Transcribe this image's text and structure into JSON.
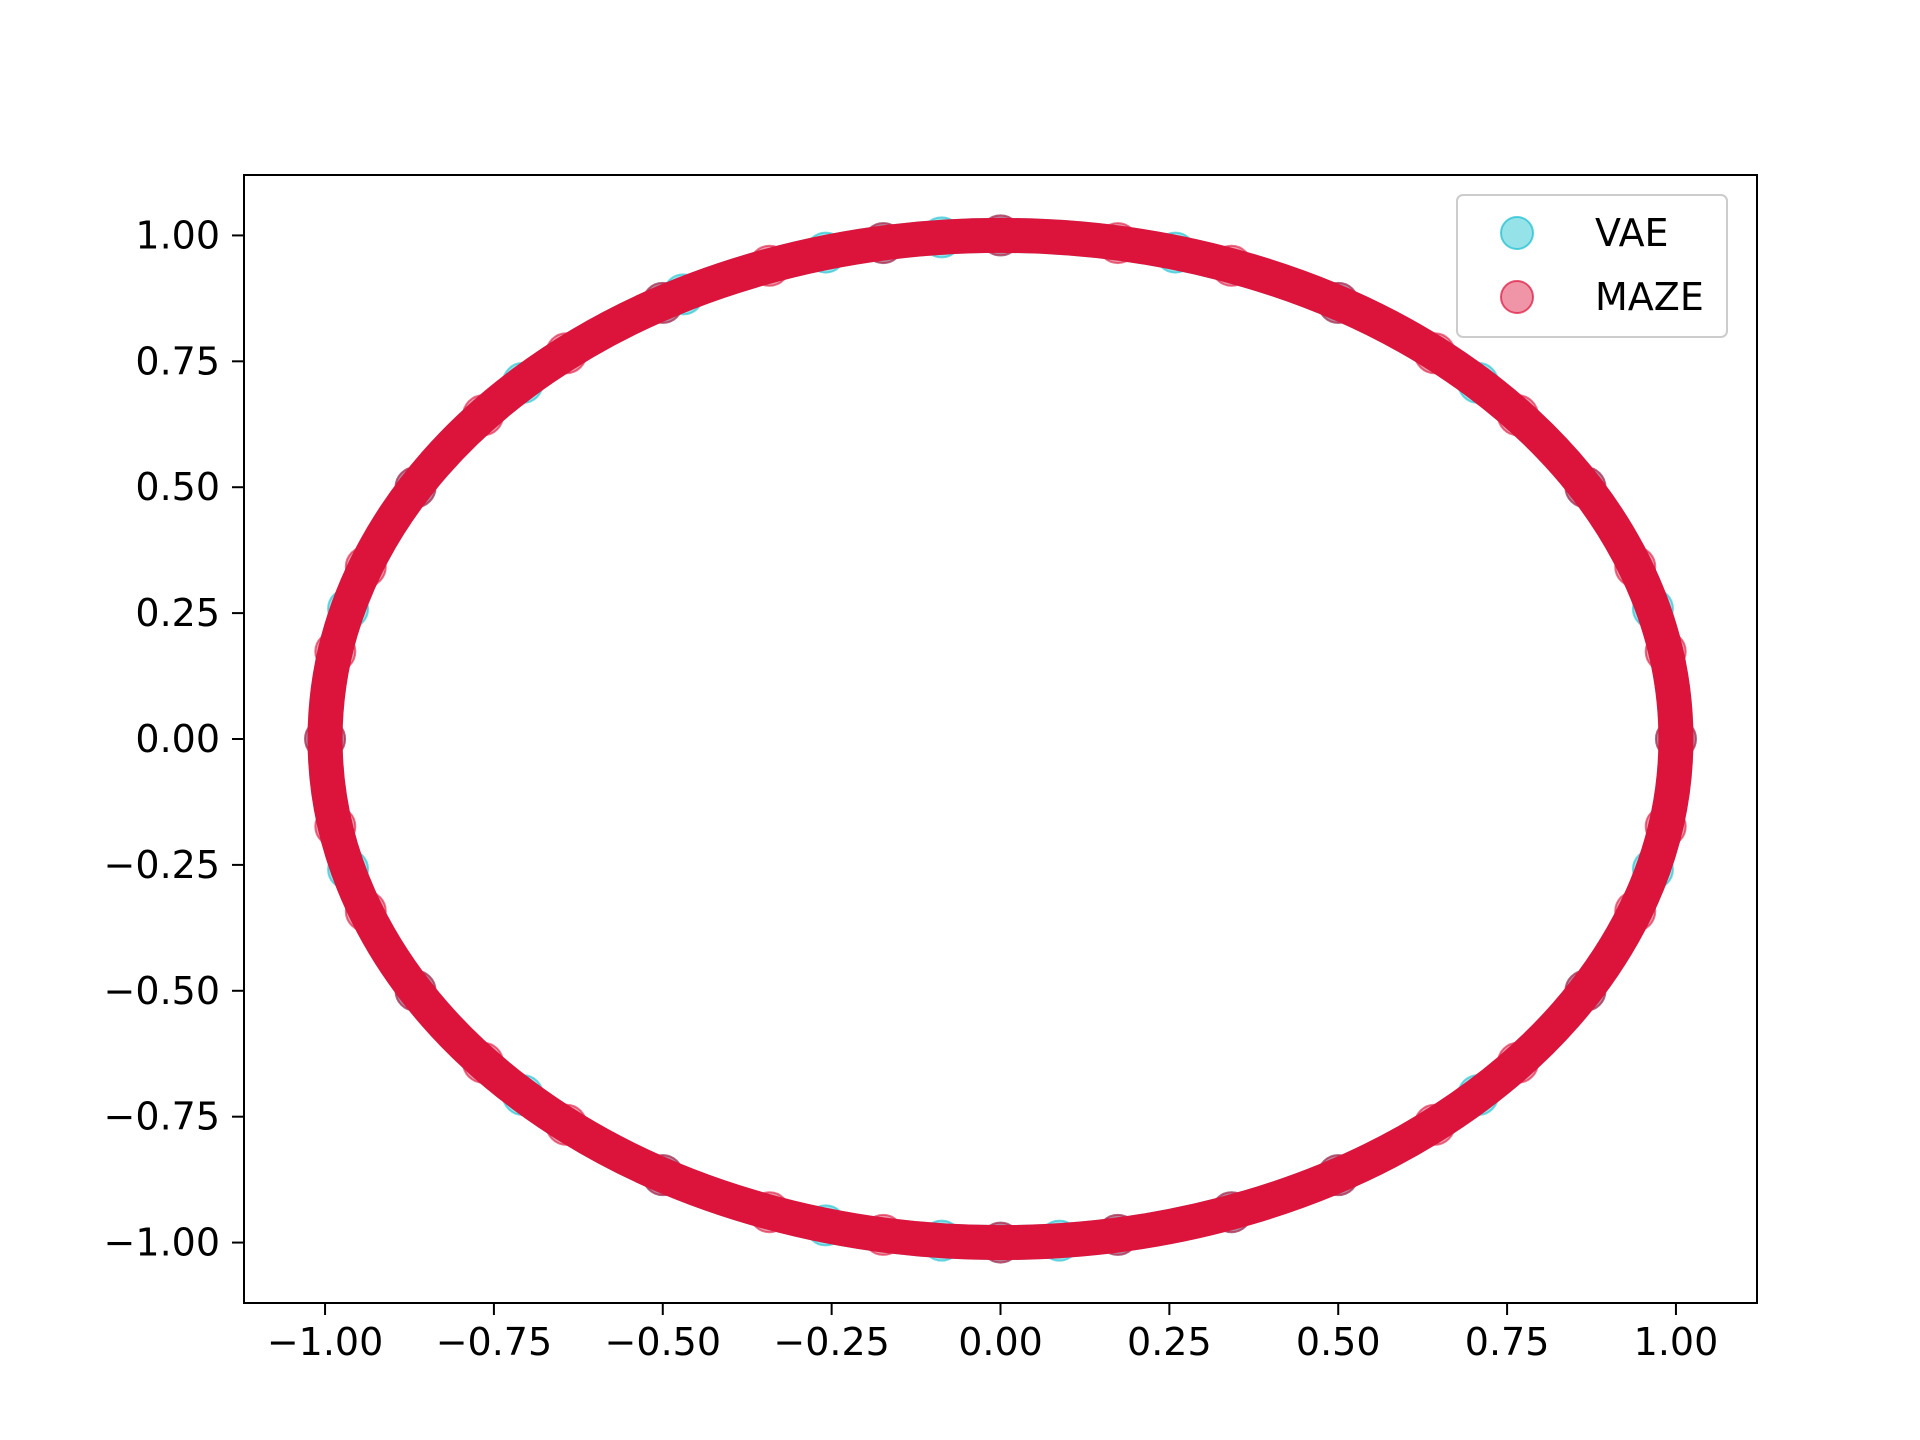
{
  "chart_data": {
    "type": "scatter",
    "title": "",
    "xlabel": "",
    "ylabel": "",
    "xlim": [
      -1.12,
      1.12
    ],
    "ylim": [
      -1.12,
      1.12
    ],
    "xticks": [
      -1.0,
      -0.75,
      -0.5,
      -0.25,
      0.0,
      0.25,
      0.5,
      0.75,
      1.0
    ],
    "yticks": [
      -1.0,
      -0.75,
      -0.5,
      -0.25,
      0.0,
      0.25,
      0.5,
      0.75,
      1.0
    ],
    "xtick_labels": [
      "−1.00",
      "−0.75",
      "−0.50",
      "−0.25",
      "0.00",
      "0.25",
      "0.50",
      "0.75",
      "1.00"
    ],
    "ytick_labels": [
      "−1.00",
      "−0.75",
      "−0.50",
      "−0.25",
      "0.00",
      "0.25",
      "0.50",
      "0.75",
      "1.00"
    ],
    "grid": false,
    "legend_position": "top-right",
    "series": [
      {
        "name": "VAE",
        "color": "#17becf",
        "alpha": 0.45,
        "distribution": "points lying on the unit circle x^2 + y^2 = 1",
        "radius": 1.0,
        "sample_angles_deg": [
          0,
          15,
          30,
          45,
          60,
          75,
          90,
          95,
          100,
          105,
          118,
          120,
          135,
          150,
          165,
          180,
          195,
          210,
          225,
          240,
          255,
          265,
          270,
          275,
          280,
          290,
          300,
          315,
          330,
          345
        ]
      },
      {
        "name": "MAZE",
        "color": "#dc143c",
        "alpha": 0.45,
        "distribution": "points lying on the unit circle x^2 + y^2 = 1",
        "radius": 1.0,
        "sample_angles_deg": [
          0,
          10,
          20,
          30,
          40,
          50,
          60,
          70,
          80,
          90,
          100,
          110,
          120,
          130,
          140,
          150,
          160,
          170,
          180,
          190,
          200,
          210,
          220,
          230,
          240,
          250,
          260,
          270,
          280,
          290,
          300,
          310,
          320,
          330,
          340,
          350
        ]
      }
    ]
  }
}
